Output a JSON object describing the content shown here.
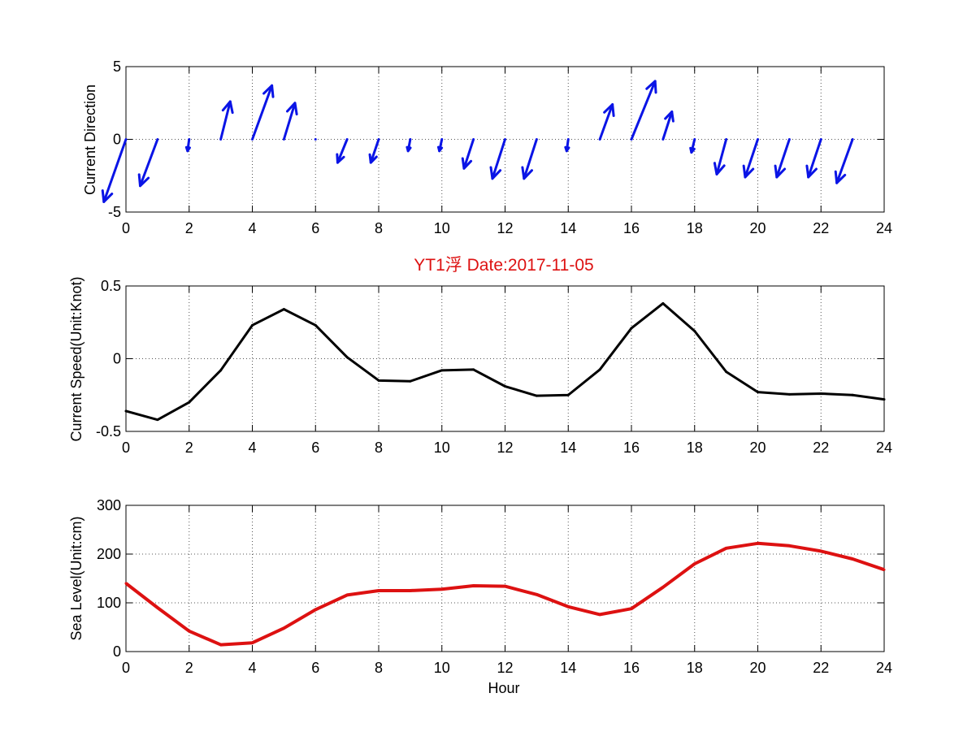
{
  "colors": {
    "title": "#dd1111",
    "direction": "#0a14e6",
    "speed": "#000000",
    "sea_level": "#dd1111",
    "grid": "#555555"
  },
  "chart_data": [
    {
      "type": "quiver",
      "ylabel": "Current Direction",
      "xlim": [
        0,
        24
      ],
      "ylim": [
        -5,
        5
      ],
      "xticks": [
        0,
        2,
        4,
        6,
        8,
        10,
        12,
        14,
        16,
        18,
        20,
        22,
        24
      ],
      "yticks": [
        -5,
        0,
        5
      ],
      "grid": true,
      "series": [
        {
          "x": [
            0,
            1,
            2,
            3,
            4,
            5,
            6,
            7,
            8,
            9,
            10,
            11,
            12,
            13,
            14,
            15,
            16,
            17,
            18,
            19,
            20,
            21,
            22,
            23,
            24
          ],
          "u": [
            -0.7,
            -0.55,
            -0.05,
            0.3,
            0.62,
            0.35,
            0,
            -0.3,
            -0.25,
            -0.07,
            -0.08,
            -0.3,
            -0.4,
            -0.4,
            -0.05,
            0.4,
            0.75,
            0.28,
            -0.1,
            -0.3,
            -0.4,
            -0.4,
            -0.4,
            -0.5,
            null
          ],
          "v": [
            -4.3,
            -3.2,
            -0.8,
            2.6,
            3.7,
            2.5,
            0,
            -1.6,
            -1.6,
            -0.8,
            -0.8,
            -2.0,
            -2.7,
            -2.7,
            -0.8,
            2.4,
            4.0,
            1.9,
            -0.9,
            -2.4,
            -2.6,
            -2.6,
            -2.6,
            -3.0,
            null
          ]
        }
      ]
    },
    {
      "type": "line",
      "title": "YT1浮    Date:2017-11-05",
      "ylabel": "Current Speed(Unit:Knot)",
      "xlim": [
        0,
        24
      ],
      "ylim": [
        -0.5,
        0.5
      ],
      "xticks": [
        0,
        2,
        4,
        6,
        8,
        10,
        12,
        14,
        16,
        18,
        20,
        22,
        24
      ],
      "yticks": [
        -0.5,
        0,
        0.5
      ],
      "grid": true,
      "x": [
        0,
        1,
        2,
        3,
        4,
        5,
        6,
        7,
        8,
        9,
        10,
        11,
        12,
        13,
        14,
        15,
        16,
        17,
        18,
        19,
        20,
        21,
        22,
        23,
        24
      ],
      "series": [
        {
          "values": [
            -0.36,
            -0.42,
            -0.3,
            -0.08,
            0.23,
            0.34,
            0.23,
            0.01,
            -0.15,
            -0.155,
            -0.08,
            -0.075,
            -0.19,
            -0.255,
            -0.25,
            -0.075,
            0.21,
            0.38,
            0.19,
            -0.09,
            -0.23,
            -0.245,
            -0.24,
            -0.25,
            -0.28
          ]
        }
      ]
    },
    {
      "type": "line",
      "xlabel": "Hour",
      "ylabel": "Sea Level(Unit:cm)",
      "xlim": [
        0,
        24
      ],
      "ylim": [
        0,
        300
      ],
      "xticks": [
        0,
        2,
        4,
        6,
        8,
        10,
        12,
        14,
        16,
        18,
        20,
        22,
        24
      ],
      "yticks": [
        0,
        100,
        200,
        300
      ],
      "grid": true,
      "x": [
        0,
        1,
        2,
        3,
        4,
        5,
        6,
        7,
        8,
        9,
        10,
        11,
        12,
        13,
        14,
        15,
        16,
        17,
        18,
        19,
        20,
        21,
        22,
        23,
        24
      ],
      "series": [
        {
          "values": [
            140,
            90,
            42,
            14,
            18,
            48,
            86,
            116,
            125,
            125,
            128,
            135,
            134,
            117,
            92,
            76,
            88,
            132,
            180,
            212,
            222,
            217,
            206,
            190,
            168
          ]
        }
      ]
    }
  ]
}
